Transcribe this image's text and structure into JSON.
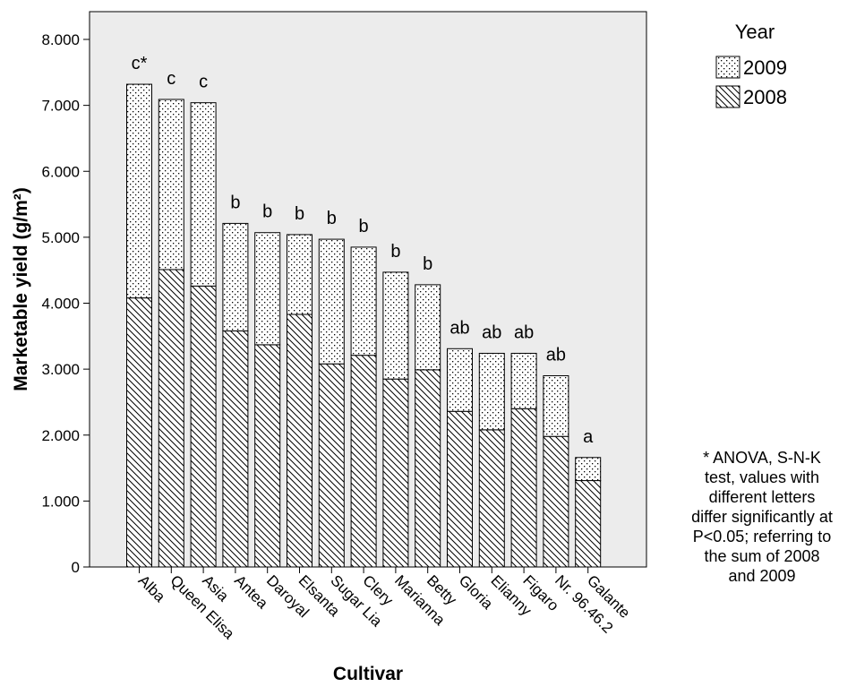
{
  "chart_data": {
    "type": "bar",
    "stacked": true,
    "categories": [
      "Alba",
      "Queen Elisa",
      "Asia",
      "Antea",
      "Daroyal",
      "Elsanta",
      "Sugar Lia",
      "Clery",
      "Marianna",
      "Betty",
      "Gloria",
      "Elianny",
      "Figaro",
      "Nr. 96.46.2",
      "Galante"
    ],
    "series": [
      {
        "name": "2008",
        "pattern": "hatch",
        "values": [
          4080,
          4510,
          4260,
          3580,
          3370,
          3830,
          3080,
          3210,
          2850,
          2990,
          2360,
          2080,
          2400,
          1980,
          1310
        ]
      },
      {
        "name": "2009",
        "pattern": "dots",
        "values": [
          3240,
          2580,
          2780,
          1630,
          1700,
          1210,
          1890,
          1640,
          1620,
          1290,
          950,
          1160,
          840,
          920,
          350
        ]
      }
    ],
    "significance_letters": [
      "c*",
      "c",
      "c",
      "b",
      "b",
      "b",
      "b",
      "b",
      "b",
      "b",
      "ab",
      "ab",
      "ab",
      "ab",
      "a"
    ],
    "xlabel": "Cultivar",
    "ylabel": "Marketable yield (g/m²)",
    "ylim": [
      0,
      8000
    ],
    "yticks": [
      0,
      1000,
      2000,
      3000,
      4000,
      5000,
      6000,
      7000,
      8000
    ],
    "ytick_labels": [
      "0",
      "1.000",
      "2.000",
      "3.000",
      "4.000",
      "5.000",
      "6.000",
      "7.000",
      "8.000"
    ],
    "legend": {
      "title": "Year",
      "entries": [
        "2009",
        "2008"
      ],
      "placement": "top-right"
    },
    "grid": false,
    "colors": {
      "plot_background": "#ececec",
      "bar_fill": "#ffffff",
      "stroke": "#000000"
    },
    "annotation": [
      "* ANOVA, S-N-K",
      "test, values with",
      "different letters",
      "differ significantly at",
      "P<0.05; referring to",
      "the sum of 2008",
      "and 2009"
    ]
  }
}
